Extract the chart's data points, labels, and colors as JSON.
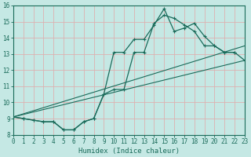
{
  "xlabel": "Humidex (Indice chaleur)",
  "xlim": [
    0,
    23
  ],
  "ylim": [
    8,
    16
  ],
  "yticks": [
    8,
    9,
    10,
    11,
    12,
    13,
    14,
    15,
    16
  ],
  "xticks": [
    0,
    1,
    2,
    3,
    4,
    5,
    6,
    7,
    8,
    9,
    10,
    11,
    12,
    13,
    14,
    15,
    16,
    17,
    18,
    19,
    20,
    21,
    22,
    23
  ],
  "bg_color": "#c5e8e4",
  "grid_color": "#ddb0b0",
  "line_color": "#1a6b5a",
  "line1_x": [
    0,
    1,
    2,
    3,
    4,
    5,
    6,
    7,
    8,
    9,
    10,
    11,
    12,
    13,
    14,
    15,
    16,
    17,
    18,
    19,
    20,
    21,
    22
  ],
  "line1_y": [
    9.1,
    9.0,
    8.9,
    8.8,
    8.8,
    8.3,
    8.3,
    8.8,
    9.0,
    10.5,
    13.1,
    13.1,
    13.9,
    13.9,
    14.8,
    15.8,
    14.4,
    14.6,
    14.9,
    14.1,
    13.5,
    13.1,
    13.1
  ],
  "line2_x": [
    0,
    1,
    2,
    3,
    4,
    5,
    6,
    7,
    8,
    9,
    10,
    11,
    12,
    13,
    14,
    15,
    16,
    17,
    18,
    19,
    20,
    21,
    22,
    23
  ],
  "line2_y": [
    9.1,
    9.0,
    8.9,
    8.8,
    8.8,
    8.3,
    8.3,
    8.8,
    9.0,
    10.5,
    10.8,
    10.8,
    13.1,
    13.1,
    14.9,
    15.4,
    15.2,
    14.8,
    14.4,
    13.5,
    13.5,
    13.1,
    13.1,
    12.6
  ],
  "line3_x": [
    0,
    23
  ],
  "line3_y": [
    9.1,
    12.6
  ],
  "line4_x": [
    0,
    23
  ],
  "line4_y": [
    9.1,
    13.5
  ]
}
